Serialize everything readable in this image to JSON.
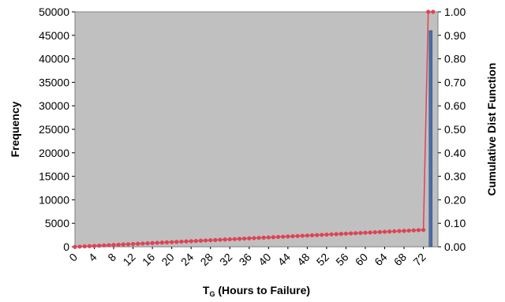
{
  "chart_data": {
    "type": "bar+line",
    "xlabel_main": "T",
    "xlabel_sub": "G",
    "xlabel_rest": " (Hours to Failure)",
    "ylabel_left": "Frequency",
    "ylabel_right": "Cumulative Dist Function",
    "x_range": [
      0,
      75
    ],
    "x_tick_labels": [
      "0",
      "4",
      "8",
      "12",
      "16",
      "20",
      "24",
      "28",
      "32",
      "36",
      "40",
      "44",
      "48",
      "52",
      "56",
      "60",
      "64",
      "68",
      "72"
    ],
    "y_left": {
      "range": [
        0,
        50000
      ],
      "ticks": [
        "0",
        "5000",
        "10000",
        "15000",
        "20000",
        "25000",
        "30000",
        "35000",
        "40000",
        "45000",
        "50000"
      ]
    },
    "y_right": {
      "range": [
        0,
        1.0
      ],
      "ticks": [
        "0.00",
        "0.10",
        "0.20",
        "0.30",
        "0.40",
        "0.50",
        "0.60",
        "0.70",
        "0.80",
        "0.90",
        "1.00"
      ]
    },
    "grid": false,
    "plot_background": "#c0c0c0",
    "series": [
      {
        "kind": "bar",
        "axis": "left",
        "color": "#4a6fa5",
        "x": [
          73.5
        ],
        "values": [
          46000
        ]
      },
      {
        "kind": "line",
        "axis": "right",
        "color": "#dd4455",
        "marker": "circle",
        "x": [
          0,
          1,
          2,
          3,
          4,
          5,
          6,
          7,
          8,
          9,
          10,
          11,
          12,
          13,
          14,
          15,
          16,
          17,
          18,
          19,
          20,
          21,
          22,
          23,
          24,
          25,
          26,
          27,
          28,
          29,
          30,
          31,
          32,
          33,
          34,
          35,
          36,
          37,
          38,
          39,
          40,
          41,
          42,
          43,
          44,
          45,
          46,
          47,
          48,
          49,
          50,
          51,
          52,
          53,
          54,
          55,
          56,
          57,
          58,
          59,
          60,
          61,
          62,
          63,
          64,
          65,
          66,
          67,
          68,
          69,
          70,
          71,
          72,
          73,
          74
        ],
        "values": [
          0.0,
          0.001,
          0.002,
          0.003,
          0.004,
          0.005,
          0.006,
          0.007,
          0.008,
          0.009,
          0.01,
          0.011,
          0.012,
          0.013,
          0.014,
          0.015,
          0.016,
          0.017,
          0.018,
          0.019,
          0.02,
          0.021,
          0.022,
          0.023,
          0.024,
          0.025,
          0.026,
          0.027,
          0.028,
          0.029,
          0.03,
          0.031,
          0.032,
          0.033,
          0.034,
          0.035,
          0.036,
          0.037,
          0.038,
          0.039,
          0.04,
          0.041,
          0.042,
          0.043,
          0.044,
          0.045,
          0.046,
          0.047,
          0.048,
          0.049,
          0.05,
          0.051,
          0.052,
          0.053,
          0.054,
          0.055,
          0.056,
          0.057,
          0.058,
          0.059,
          0.06,
          0.061,
          0.062,
          0.063,
          0.064,
          0.065,
          0.066,
          0.067,
          0.068,
          0.069,
          0.07,
          0.071,
          0.072,
          1.0,
          1.0
        ]
      }
    ]
  }
}
